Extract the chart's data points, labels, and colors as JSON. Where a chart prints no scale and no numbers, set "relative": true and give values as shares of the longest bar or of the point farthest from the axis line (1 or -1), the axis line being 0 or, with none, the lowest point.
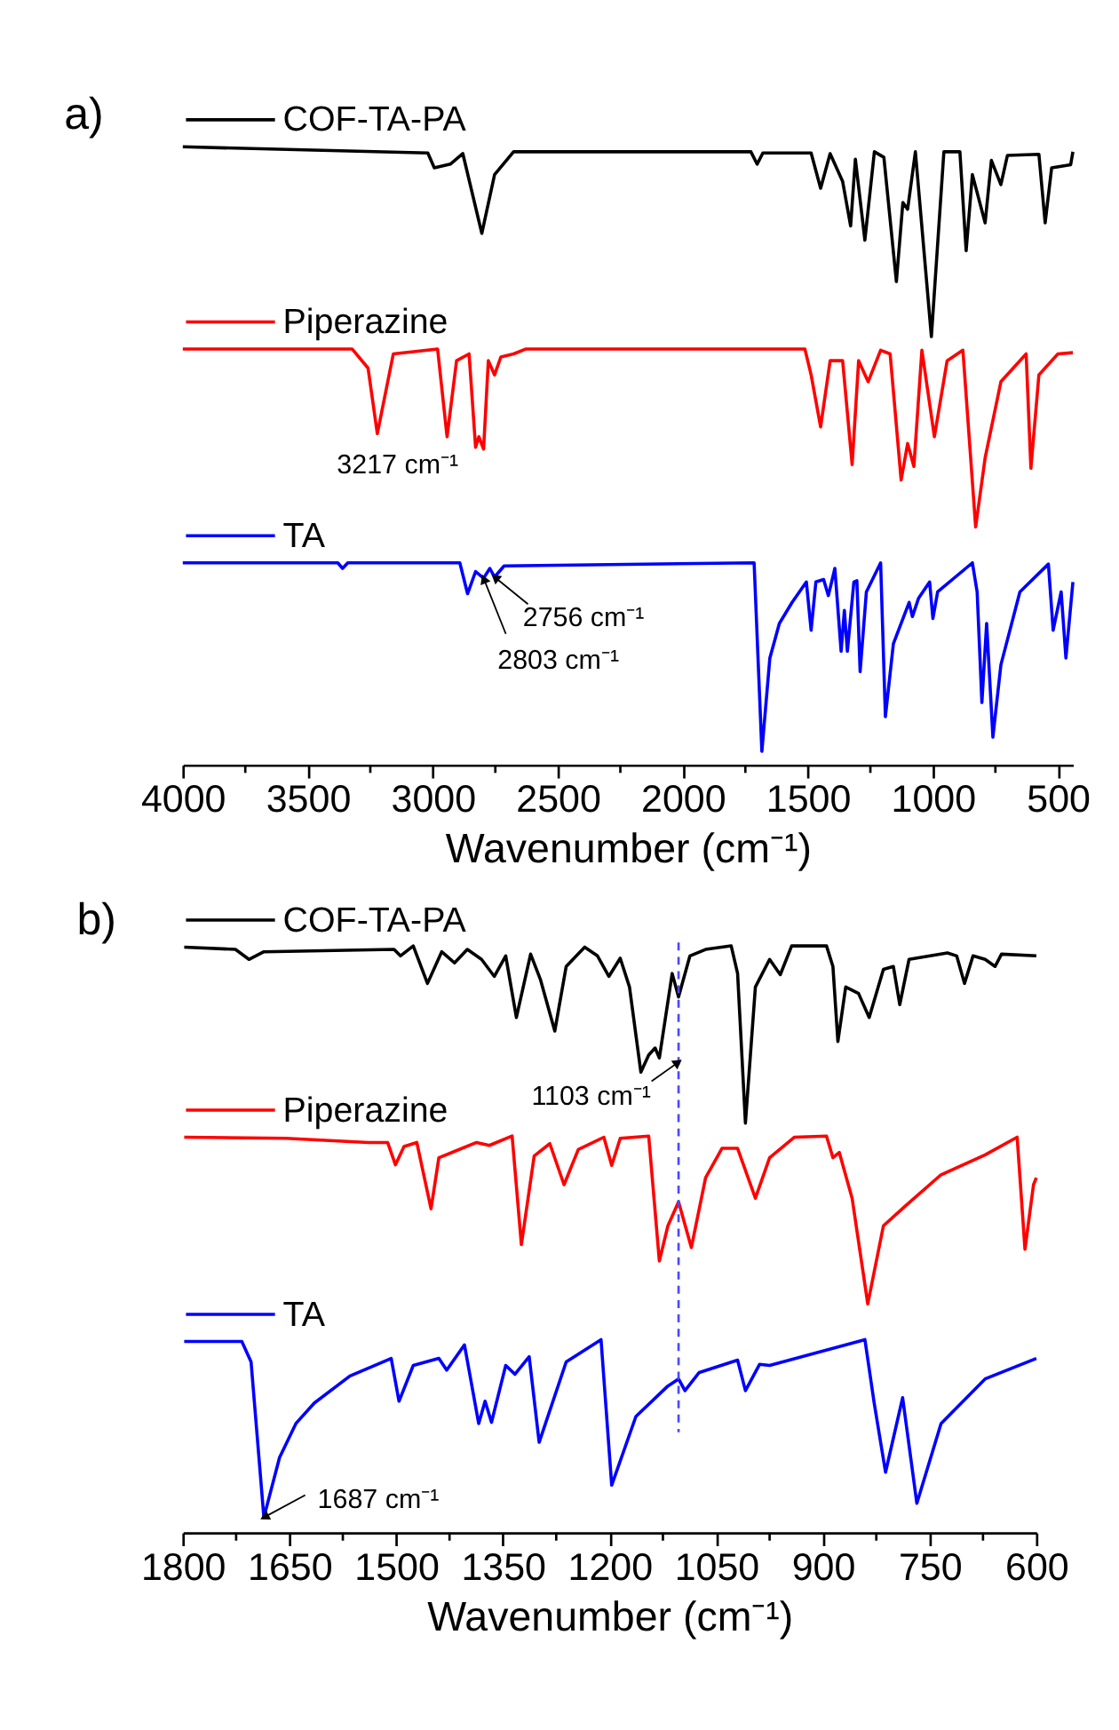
{
  "chart_data": [
    {
      "type": "line",
      "title": "a)",
      "xlabel": "Wavenumber (cm⁻¹)",
      "relative": true,
      "xlim": [
        4000,
        440
      ],
      "xticks": [
        4000,
        {
          "value": 3750,
          "label": null
        },
        3500,
        {
          "value": 3250,
          "label": null
        },
        3000,
        {
          "value": 2750,
          "label": null
        },
        2500,
        {
          "value": 2250,
          "label": null
        },
        2000,
        {
          "value": 1750,
          "label": null
        },
        1500,
        {
          "value": 1250,
          "label": null
        },
        1000,
        {
          "value": 750,
          "label": null
        },
        500
      ],
      "series": [
        {
          "name": "COF-TA-PA",
          "color": "#000000",
          "x": [
            4000,
            3020,
            2994,
            2930,
            2880,
            2804,
            2753,
            2677,
            1728,
            1703,
            1680,
            1487,
            1449,
            1411,
            1361,
            1329,
            1310,
            1272,
            1234,
            1196,
            1146,
            1120,
            1101,
            1070,
            1006,
            956,
            892,
            867,
            842,
            791,
            766,
            728,
            702,
            576,
            551,
            525,
            449,
            440
          ],
          "values": [
            1.0,
            0.99,
            0.966,
            0.972,
            0.989,
            0.86,
            0.955,
            0.992,
            0.992,
            0.972,
            0.99,
            0.99,
            0.933,
            0.989,
            0.944,
            0.872,
            0.98,
            0.849,
            0.992,
            0.983,
            0.782,
            0.91,
            0.899,
            0.992,
            0.693,
            0.992,
            0.992,
            0.832,
            0.955,
            0.877,
            0.978,
            0.939,
            0.986,
            0.988,
            0.877,
            0.966,
            0.971,
            0.992
          ]
        },
        {
          "name": "Piperazine",
          "color": "#ff0000",
          "x": [
            4000,
            3323,
            3259,
            3222,
            3158,
            2981,
            2943,
            2905,
            2855,
            2829,
            2816,
            2797,
            2778,
            2753,
            2728,
            2677,
            2627,
            1512,
            1487,
            1449,
            1411,
            1361,
            1323,
            1297,
            1259,
            1209,
            1171,
            1127,
            1101,
            1076,
            1044,
            994,
            943,
            880,
            829,
            791,
            728,
            627,
            608,
            576,
            500,
            440
          ],
          "values": [
            0.673,
            0.673,
            0.642,
            0.536,
            0.665,
            0.673,
            0.531,
            0.654,
            0.665,
            0.514,
            0.531,
            0.511,
            0.654,
            0.631,
            0.66,
            0.665,
            0.673,
            0.673,
            0.631,
            0.547,
            0.654,
            0.654,
            0.486,
            0.654,
            0.62,
            0.671,
            0.665,
            0.461,
            0.52,
            0.483,
            0.671,
            0.531,
            0.654,
            0.671,
            0.385,
            0.497,
            0.62,
            0.665,
            0.48,
            0.631,
            0.665,
            0.667
          ]
        },
        {
          "name": "TA",
          "color": "#0000ff",
          "x": [
            4000,
            3380,
            3361,
            3340,
            2892,
            2861,
            2829,
            2797,
            2772,
            2753,
            2715,
            1715,
            1684,
            1652,
            1614,
            1563,
            1506,
            1487,
            1468,
            1437,
            1418,
            1392,
            1367,
            1354,
            1342,
            1316,
            1304,
            1291,
            1266,
            1209,
            1190,
            1158,
            1095,
            1082,
            1057,
            1013,
            1000,
            981,
            842,
            823,
            804,
            785,
            760,
            728,
            652,
            538,
            519,
            487,
            468,
            440
          ],
          "values": [
            0.327,
            0.327,
            0.318,
            0.327,
            0.327,
            0.277,
            0.313,
            0.302,
            0.318,
            0.304,
            0.322,
            0.327,
            0.022,
            0.173,
            0.229,
            0.263,
            0.296,
            0.218,
            0.296,
            0.3,
            0.274,
            0.318,
            0.184,
            0.25,
            0.184,
            0.296,
            0.298,
            0.151,
            0.28,
            0.327,
            0.078,
            0.196,
            0.263,
            0.24,
            0.27,
            0.296,
            0.237,
            0.28,
            0.327,
            0.28,
            0.101,
            0.229,
            0.045,
            0.162,
            0.28,
            0.325,
            0.218,
            0.28,
            0.173,
            0.296
          ]
        }
      ],
      "legend": "top left",
      "annotations": [
        {
          "text": "3217 cm⁻¹",
          "x": 3217,
          "y": 0.536
        },
        {
          "text": "2803 cm⁻¹",
          "x": 2797,
          "y": 0.302
        },
        {
          "text": "2756 cm⁻¹",
          "x": 2753,
          "y": 0.304
        }
      ]
    },
    {
      "type": "line",
      "title": "b)",
      "xlabel": "Wavenumber (cm⁻¹)",
      "relative": true,
      "xlim": [
        1800,
        600
      ],
      "xticks": [
        1800,
        {
          "value": 1725,
          "label": null
        },
        1650,
        {
          "value": 1575,
          "label": null
        },
        1500,
        {
          "value": 1425,
          "label": null
        },
        1350,
        {
          "value": 1275,
          "label": null
        },
        1200,
        {
          "value": 1125,
          "label": null
        },
        1050,
        {
          "value": 975,
          "label": null
        },
        900,
        {
          "value": 825,
          "label": null
        },
        750,
        {
          "value": 675,
          "label": null
        },
        600
      ],
      "series": [
        {
          "name": "COF-TA-PA",
          "color": "#000000",
          "x": [
            1798,
            1726,
            1707,
            1686,
            1503,
            1494,
            1476,
            1456,
            1436,
            1418,
            1400,
            1380,
            1362,
            1346,
            1331,
            1311,
            1297,
            1277,
            1261,
            1235,
            1217,
            1201,
            1185,
            1172,
            1156,
            1145,
            1136,
            1130,
            1112,
            1103,
            1087,
            1065,
            1029,
            1020,
            1009,
            995,
            975,
            960,
            944,
            895,
            886,
            879,
            868,
            850,
            835,
            815,
            801,
            792,
            779,
            725,
            712,
            701,
            689,
            672,
            658,
            649,
            600
          ],
          "values": [
            0.998,
            0.994,
            0.977,
            0.99,
            0.994,
            0.983,
            1.0,
            0.936,
            0.99,
            0.971,
            0.994,
            0.977,
            0.948,
            0.983,
            0.878,
            0.986,
            0.942,
            0.855,
            0.965,
            0.998,
            0.983,
            0.948,
            0.979,
            0.93,
            0.785,
            0.814,
            0.826,
            0.809,
            0.953,
            0.913,
            0.983,
            0.994,
            1.0,
            0.953,
            0.698,
            0.93,
            0.977,
            0.951,
            1.0,
            1.0,
            0.965,
            0.837,
            0.93,
            0.919,
            0.878,
            0.96,
            0.965,
            0.9,
            0.977,
            0.988,
            0.983,
            0.936,
            0.983,
            0.977,
            0.965,
            0.986,
            0.983
          ]
        },
        {
          "name": "Piperazine",
          "color": "#ff0000",
          "x": [
            1798,
            1655,
            1539,
            1512,
            1501,
            1489,
            1471,
            1451,
            1440,
            1387,
            1369,
            1337,
            1324,
            1306,
            1284,
            1264,
            1244,
            1208,
            1197,
            1185,
            1145,
            1130,
            1118,
            1103,
            1085,
            1065,
            1042,
            1020,
            995,
            975,
            940,
            895,
            886,
            877,
            859,
            837,
            815,
            783,
            734,
            672,
            627,
            616,
            604,
            600
          ],
          "values": [
            0.674,
            0.672,
            0.665,
            0.665,
            0.627,
            0.658,
            0.665,
            0.552,
            0.639,
            0.665,
            0.66,
            0.676,
            0.491,
            0.642,
            0.663,
            0.593,
            0.653,
            0.674,
            0.626,
            0.672,
            0.676,
            0.463,
            0.523,
            0.564,
            0.486,
            0.605,
            0.655,
            0.655,
            0.57,
            0.639,
            0.674,
            0.676,
            0.639,
            0.648,
            0.57,
            0.39,
            0.523,
            0.558,
            0.61,
            0.644,
            0.674,
            0.483,
            0.593,
            0.605
          ]
        },
        {
          "name": "TA",
          "color": "#0000ff",
          "x": [
            1798,
            1717,
            1704,
            1686,
            1664,
            1641,
            1615,
            1565,
            1507,
            1496,
            1476,
            1440,
            1429,
            1404,
            1384,
            1375,
            1366,
            1346,
            1333,
            1313,
            1299,
            1261,
            1212,
            1197,
            1163,
            1118,
            1103,
            1094,
            1074,
            1020,
            1009,
            989,
            975,
            841,
            828,
            812,
            788,
            768,
            734,
            672,
            600
          ],
          "values": [
            0.326,
            0.326,
            0.291,
            0.026,
            0.128,
            0.186,
            0.221,
            0.267,
            0.297,
            0.224,
            0.285,
            0.297,
            0.277,
            0.32,
            0.186,
            0.224,
            0.188,
            0.285,
            0.27,
            0.3,
            0.154,
            0.291,
            0.329,
            0.081,
            0.198,
            0.25,
            0.262,
            0.242,
            0.273,
            0.294,
            0.242,
            0.287,
            0.285,
            0.329,
            0.221,
            0.103,
            0.23,
            0.05,
            0.186,
            0.262,
            0.297
          ]
        }
      ],
      "legend": "top left",
      "annotations": [
        {
          "text": "1103 cm⁻¹",
          "x": 1103,
          "y": 0.802
        },
        {
          "text": "1687 cm⁻¹",
          "x": 1686,
          "y": 0.026
        }
      ],
      "ref_lines": [
        {
          "axis": "x",
          "value": 1103,
          "color": "#4a4aff",
          "line_style": "dashed"
        }
      ]
    }
  ]
}
